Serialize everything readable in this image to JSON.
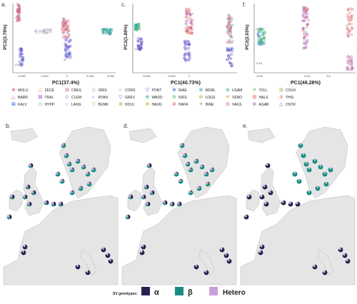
{
  "panels": {
    "pca": [
      {
        "letter": "a.",
        "xlabel": "PC1(37.4%)",
        "ylabel": "PC2(3.78%)",
        "xticks": [
          "-0.050",
          "-0.025",
          "0",
          "0.025",
          "0.050"
        ],
        "yticks": [
          "-0.05",
          "-0.10"
        ]
      },
      {
        "letter": "c.",
        "xlabel": "PC1(40.73%)",
        "ylabel": "PC2(1.88%)",
        "xticks": [
          "-0.050",
          "-0.025",
          "0"
        ],
        "yticks": [
          "-0.05",
          "-0.10"
        ]
      },
      {
        "letter": "f.",
        "xlabel": "PC1(46.28%)",
        "ylabel": "PC2(2.03%)",
        "xticks": [
          "-0.03",
          "0.03",
          "0.6"
        ],
        "yticks": [
          "-0.05",
          "-0.10"
        ]
      }
    ],
    "maps": [
      {
        "letter": "b."
      },
      {
        "letter": "d."
      },
      {
        "letter": "e."
      }
    ]
  },
  "legend": {
    "rows": [
      [
        "MOLU",
        "ZECE",
        "CRES",
        "ORIS",
        "CORS",
        "PONT",
        "RIAE",
        "MORL",
        "USAM",
        "TOLL",
        "COLN"
      ],
      [
        "BARR",
        "TRAL",
        "CLEW",
        "RYAN",
        "GREV",
        "WADD",
        "NISS",
        "LOGS",
        "VENO",
        "HALS",
        "THIS"
      ],
      [
        "KALV",
        "HYPP",
        "LANG",
        "BUNN",
        "DOLV",
        "HAUG",
        "HAFR",
        "INNE",
        "VAGS",
        "AGAB",
        "OSTR"
      ]
    ]
  },
  "genotype_legend": {
    "title": "SV genotypes:",
    "items": [
      {
        "label": "α",
        "color": "#2b2150"
      },
      {
        "label": "β",
        "color": "#1a8c84"
      },
      {
        "label": "Hetero",
        "color": "#c9a0d6"
      }
    ]
  },
  "colors": {
    "alpha": "#2b2150",
    "beta": "#1a8c84",
    "hetero": "#c9a0d6",
    "land": "#e5e5e5",
    "sea": "#ffffff",
    "axis": "#555555"
  }
}
